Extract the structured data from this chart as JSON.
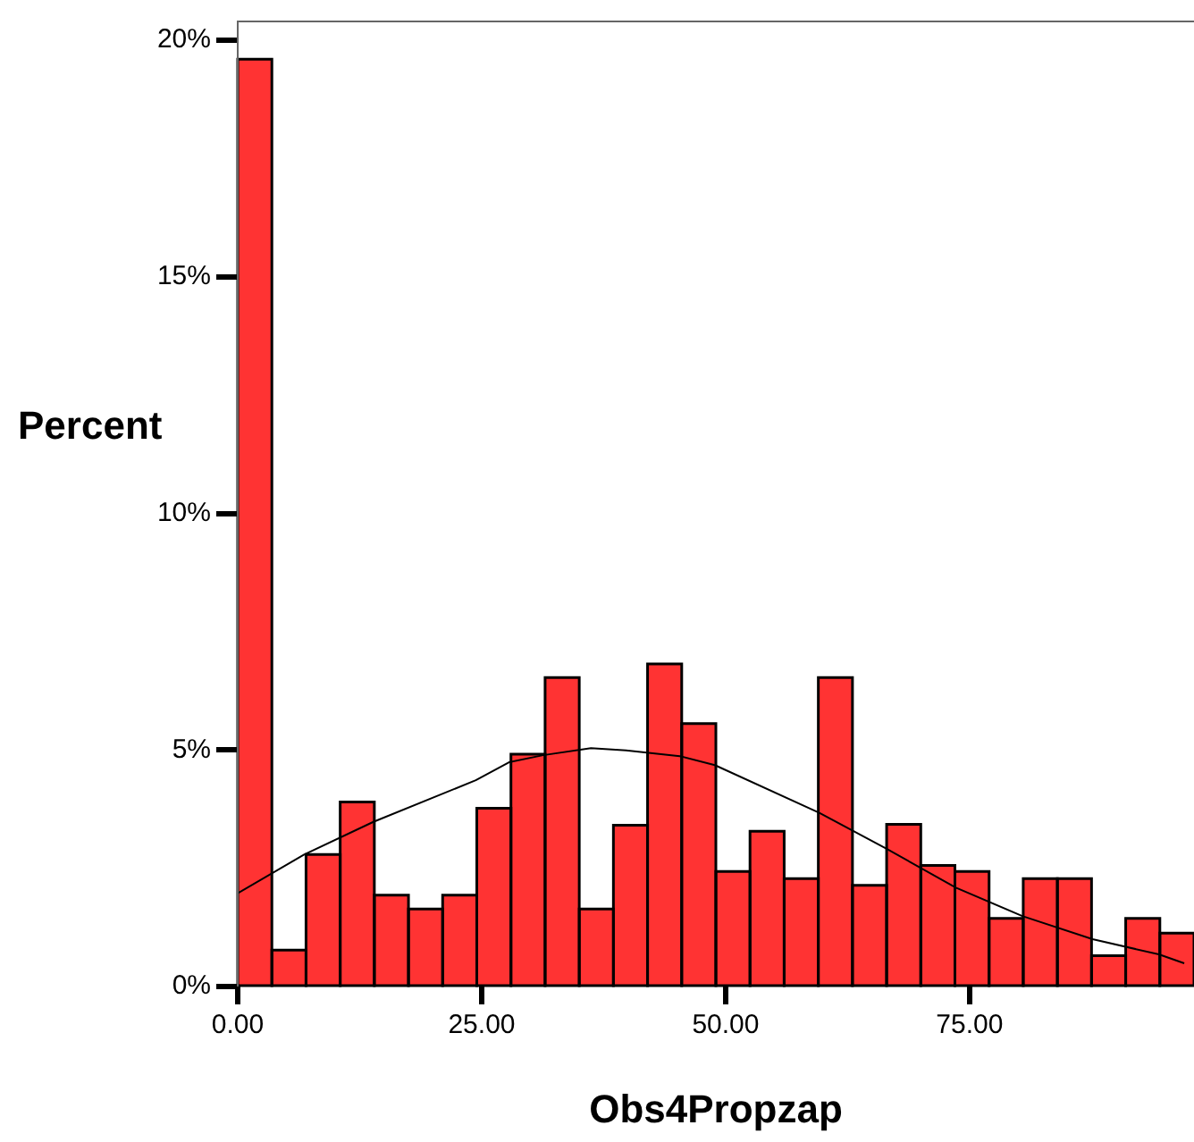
{
  "chart_data": {
    "type": "histogram",
    "xlabel": "Obs4Propzap",
    "ylabel": "Percent",
    "bins": [
      0,
      3.5,
      7,
      10.5,
      14,
      17.5,
      21,
      24.5,
      28,
      31.5,
      35,
      38.5,
      42,
      45.5,
      49,
      52.5,
      56,
      59.5,
      63,
      66.5,
      70,
      73.5,
      77,
      80.5,
      84,
      87.5,
      91,
      94.5,
      98
    ],
    "values": [
      19.6,
      0.77,
      2.79,
      3.9,
      1.93,
      1.64,
      1.93,
      3.77,
      4.91,
      6.53,
      1.64,
      3.41,
      6.82,
      5.56,
      2.43,
      3.28,
      2.28,
      6.53,
      2.14,
      3.43,
      2.56,
      2.43,
      1.44,
      2.28,
      2.28,
      0.65,
      1.44,
      1.13
    ],
    "color": "#ff3333",
    "series": [
      {
        "type": "line",
        "color": "#000000",
        "x": [
          0,
          6.8,
          13.9,
          24.4,
          27.8,
          31.3,
          36.2,
          39.8,
          45.3,
          48.9,
          59.6,
          66.5,
          73.6,
          80.4,
          87.6,
          94.4,
          97
        ],
        "values": [
          1.97,
          2.79,
          3.48,
          4.36,
          4.74,
          4.89,
          5.04,
          4.99,
          4.87,
          4.68,
          3.67,
          2.91,
          2.09,
          1.49,
          1.0,
          0.68,
          0.49
        ]
      }
    ],
    "xlim": [
      0,
      98
    ],
    "xticks": [
      {
        "value": 0,
        "label": "0.00"
      },
      {
        "value": 25,
        "label": "25.00"
      },
      {
        "value": 50,
        "label": "50.00"
      },
      {
        "value": 75,
        "label": "75.00"
      }
    ],
    "ylim": [
      0,
      20.4
    ],
    "yticks": [
      {
        "value": 0,
        "label": "0%"
      },
      {
        "value": 5,
        "label": "5%"
      },
      {
        "value": 10,
        "label": "10%"
      },
      {
        "value": 15,
        "label": "15%"
      },
      {
        "value": 20,
        "label": "20%"
      }
    ],
    "grid": false,
    "legend": false,
    "marker": "none"
  }
}
